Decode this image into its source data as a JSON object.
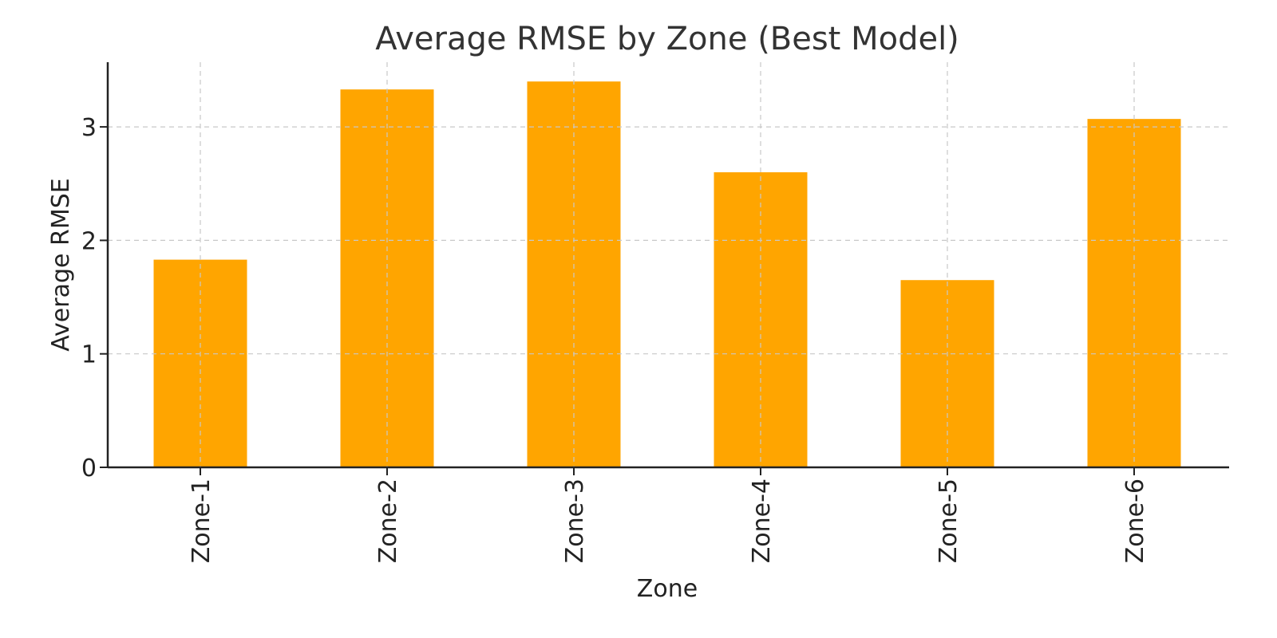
{
  "chart_data": {
    "type": "bar",
    "title": "Average RMSE by Zone (Best Model)",
    "xlabel": "Zone",
    "ylabel": "Average RMSE",
    "categories": [
      "Zone-1",
      "Zone-2",
      "Zone-3",
      "Zone-4",
      "Zone-5",
      "Zone-6"
    ],
    "values": [
      1.83,
      3.33,
      3.4,
      2.6,
      1.65,
      3.07
    ],
    "ylim": [
      0,
      3.57
    ],
    "yticks": [
      0,
      1,
      2,
      3
    ],
    "grid": true,
    "bar_color": "#FFA500"
  }
}
